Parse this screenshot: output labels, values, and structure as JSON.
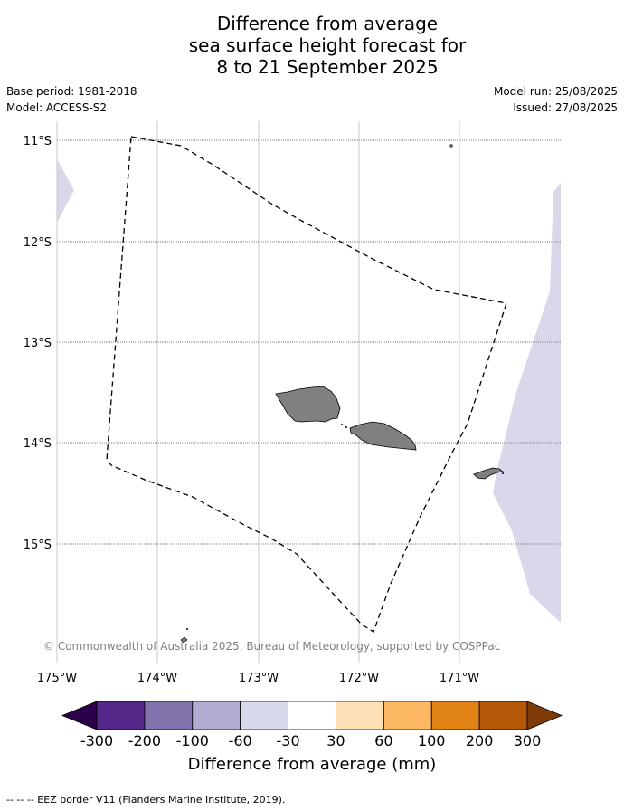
{
  "title_lines": [
    "Difference from average",
    "sea surface height forecast for",
    "8 to 21 September 2025"
  ],
  "base_period": "Base period: 1981-2018",
  "model": "Model: ACCESS-S2",
  "model_run": "Model run: 25/08/2025",
  "issued": "Issued: 27/08/2025",
  "copyright": "© Commonwealth of Australia 2025, Bureau of Meteorology, supported by COSPPac",
  "map": {
    "lat_labels": [
      "11°S",
      "12°S",
      "13°S",
      "14°S",
      "15°S"
    ],
    "lon_labels": [
      "175°W",
      "174°W",
      "173°W",
      "172°W",
      "171°W"
    ],
    "land_color": "#808080",
    "anomaly_color_light": "#d8d8ea"
  },
  "colorbar": {
    "labels": [
      "-300",
      "-200",
      "-100",
      "-60",
      "-30",
      "30",
      "60",
      "100",
      "200",
      "300"
    ],
    "colors": [
      "#2d004b",
      "#542788",
      "#8073ac",
      "#b2abd2",
      "#d8daeb",
      "#ffffff",
      "#fee0b6",
      "#fdb863",
      "#e08214",
      "#b35806",
      "#7f3b08"
    ],
    "title": "Difference from average (mm)"
  },
  "footnote": "--  --  -- EEZ border V11 (Flanders Marine Institute, 2019)."
}
